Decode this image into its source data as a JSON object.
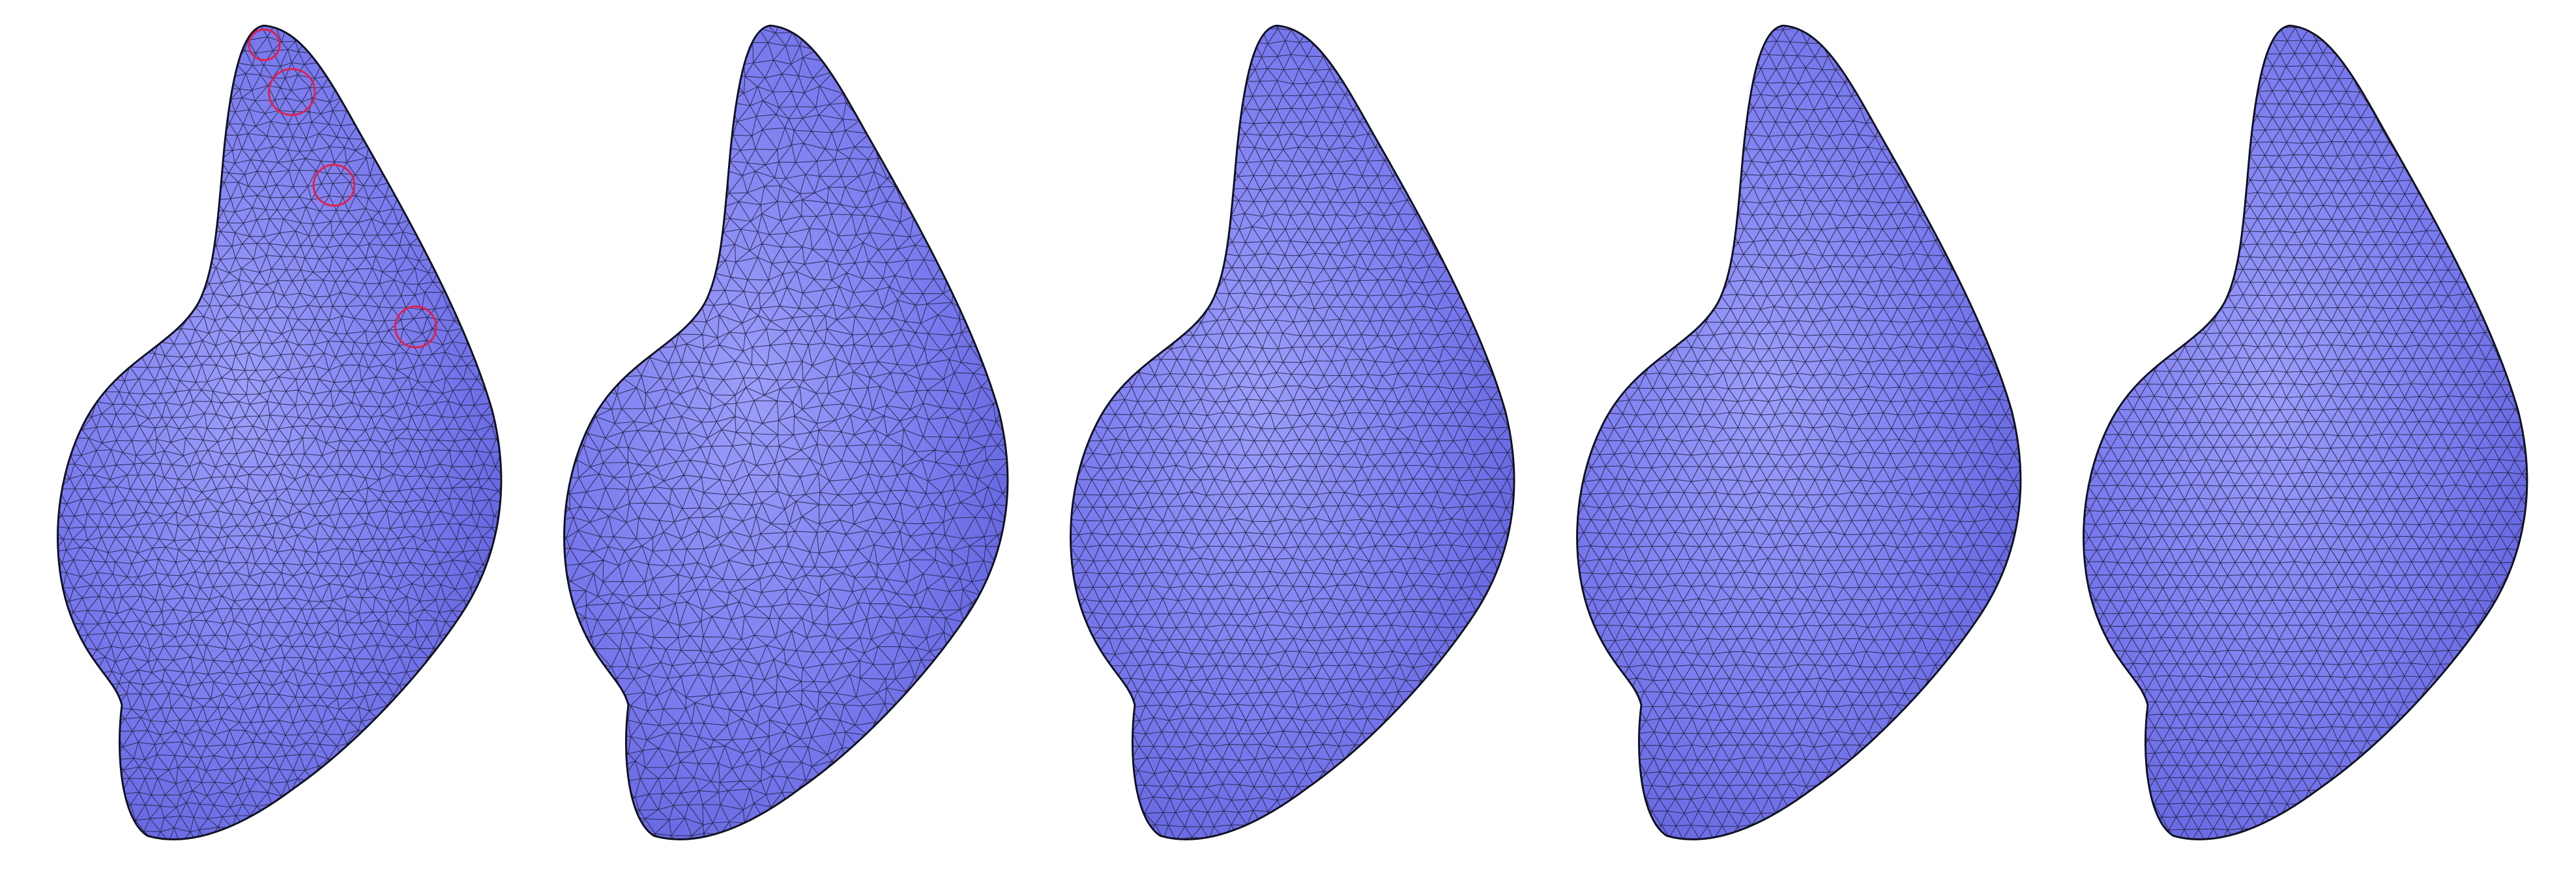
{
  "figure": {
    "background": "#ffffff",
    "mesh_fill": "#7f80f2",
    "mesh_shade": "#5a5bd8",
    "mesh_highlight": "#a6a8ff",
    "wire_color": "#1b1b33",
    "marker_color": "#e0204a",
    "panels": [
      {
        "id": "mesh-1",
        "density": 22,
        "irregularity": 0.42,
        "markers": 4
      },
      {
        "id": "mesh-2",
        "density": 26,
        "irregularity": 0.55,
        "markers": 0
      },
      {
        "id": "mesh-3",
        "density": 24,
        "irregularity": 0.22,
        "markers": 0
      },
      {
        "id": "mesh-4",
        "density": 24,
        "irregularity": 0.18,
        "markers": 0
      },
      {
        "id": "mesh-5",
        "density": 23,
        "irregularity": 0.12,
        "markers": 0
      }
    ]
  }
}
